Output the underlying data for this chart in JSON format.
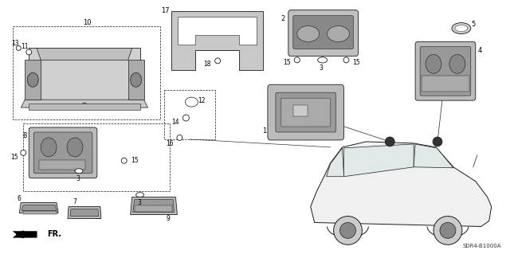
{
  "diagram_code": "SDR4-B1000A",
  "background_color": "#ffffff",
  "line_color": "#1a1a1a",
  "gray_fill": "#aaaaaa",
  "light_gray": "#cccccc",
  "dark_gray": "#555555",
  "figsize": [
    6.4,
    3.19
  ],
  "dpi": 100
}
